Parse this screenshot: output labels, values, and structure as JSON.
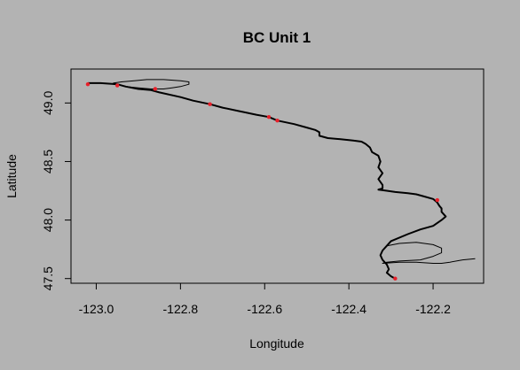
{
  "chart_data": {
    "type": "scatter",
    "title": "BC Unit 1",
    "xlabel": "Longitude",
    "ylabel": "Latitude",
    "xlim": [
      -123.06,
      -122.08
    ],
    "ylim": [
      47.46,
      49.29
    ],
    "xticks": [
      "-123.0",
      "-122.8",
      "-122.6",
      "-122.4",
      "-122.2"
    ],
    "yticks": [
      "47.5",
      "48.0",
      "48.5",
      "49.0"
    ],
    "grid": false,
    "colors": {
      "background": "#b3b3b3",
      "track": "#000000",
      "points": "#e8202a"
    },
    "series": [
      {
        "style": "line",
        "x": [
          -123.02,
          -122.99,
          -122.95,
          -122.93,
          -122.9,
          -122.87,
          -122.85,
          -122.8,
          -122.77,
          -122.73,
          -122.7,
          -122.66,
          -122.62,
          -122.59,
          -122.57,
          -122.53,
          -122.5,
          -122.48,
          -122.47,
          -122.47,
          -122.45,
          -122.42,
          -122.39,
          -122.37,
          -122.36,
          -122.35,
          -122.345,
          -122.33,
          -122.325,
          -122.33,
          -122.32,
          -122.33,
          -122.32,
          -122.32,
          -122.33,
          -122.31,
          -122.29,
          -122.26,
          -122.24,
          -122.22,
          -122.2,
          -122.19,
          -122.185,
          -122.18,
          -122.18,
          -122.17,
          -122.18,
          -122.2,
          -122.23,
          -122.26,
          -122.3,
          -122.31,
          -122.32,
          -122.325,
          -122.32,
          -122.31,
          -122.305,
          -122.31,
          -122.3,
          -122.29
        ],
        "y": [
          49.17,
          49.17,
          49.16,
          49.14,
          49.12,
          49.11,
          49.09,
          49.05,
          49.02,
          48.99,
          48.96,
          48.93,
          48.9,
          48.88,
          48.85,
          48.82,
          48.79,
          48.77,
          48.75,
          48.72,
          48.7,
          48.69,
          48.68,
          48.67,
          48.65,
          48.62,
          48.58,
          48.55,
          48.5,
          48.45,
          48.4,
          48.35,
          48.3,
          48.27,
          48.26,
          48.25,
          48.24,
          48.23,
          48.22,
          48.2,
          48.18,
          48.15,
          48.12,
          48.1,
          48.07,
          48.03,
          48.0,
          47.95,
          47.92,
          47.88,
          47.82,
          47.78,
          47.74,
          47.7,
          47.66,
          47.62,
          47.58,
          47.55,
          47.52,
          47.5
        ]
      },
      {
        "style": "line",
        "x": [
          -122.93,
          -122.9,
          -122.87,
          -122.84,
          -122.82,
          -122.8,
          -122.78,
          -122.78,
          -122.8,
          -122.84,
          -122.88,
          -122.91,
          -122.94,
          -122.96
        ],
        "y": [
          49.14,
          49.13,
          49.12,
          49.12,
          49.13,
          49.14,
          49.16,
          49.18,
          49.19,
          49.2,
          49.2,
          49.19,
          49.18,
          49.17
        ]
      },
      {
        "style": "line",
        "x": [
          -122.31,
          -122.28,
          -122.24,
          -122.2,
          -122.18,
          -122.18,
          -122.2,
          -122.23,
          -122.28,
          -122.31,
          -122.32,
          -122.28,
          -122.24,
          -122.2,
          -122.18,
          -122.16,
          -122.13,
          -122.1
        ],
        "y": [
          47.78,
          47.8,
          47.81,
          47.79,
          47.76,
          47.72,
          47.69,
          47.66,
          47.65,
          47.64,
          47.63,
          47.64,
          47.64,
          47.63,
          47.63,
          47.64,
          47.66,
          47.67
        ]
      }
    ],
    "points": {
      "x": [
        -123.02,
        -122.95,
        -122.86,
        -122.73,
        -122.59,
        -122.57,
        -122.19,
        -122.29
      ],
      "y": [
        49.16,
        49.15,
        49.12,
        48.99,
        48.88,
        48.85,
        48.17,
        47.5
      ]
    }
  }
}
